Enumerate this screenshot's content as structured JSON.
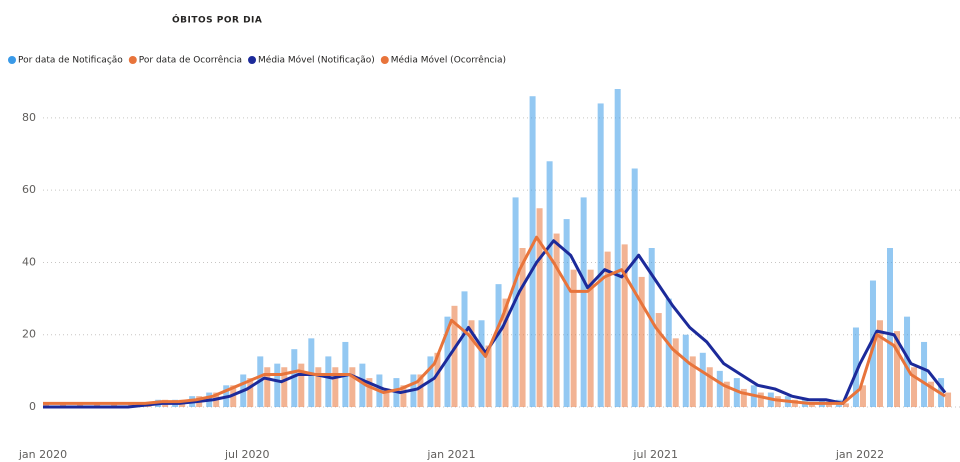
{
  "chart_data": {
    "type": "bar_line",
    "title": "ÓBITOS POR DIA",
    "categories": [
      "jan 2020",
      null,
      null,
      null,
      null,
      null,
      null,
      null,
      null,
      null,
      null,
      null,
      "jul 2020",
      null,
      null,
      null,
      null,
      null,
      null,
      null,
      null,
      null,
      null,
      null,
      "jan 2021",
      null,
      null,
      null,
      null,
      null,
      null,
      null,
      null,
      null,
      null,
      null,
      "jul 2021",
      null,
      null,
      null,
      null,
      null,
      null,
      null,
      null,
      null,
      null,
      null,
      "jan 2022",
      null,
      null,
      null,
      null,
      null
    ],
    "series": [
      {
        "name": "Por data de Notificação",
        "color": "#3a9ae8",
        "kind": "bar",
        "values": [
          0,
          0,
          0,
          0,
          0,
          0,
          1,
          2,
          2,
          3,
          4,
          6,
          9,
          14,
          12,
          16,
          19,
          14,
          18,
          12,
          9,
          8,
          9,
          14,
          25,
          32,
          24,
          34,
          58,
          86,
          68,
          52,
          58,
          84,
          88,
          66,
          44,
          30,
          20,
          15,
          10,
          8,
          6,
          4,
          3,
          2,
          2,
          2,
          22,
          35,
          44,
          25,
          18,
          8
        ]
      },
      {
        "name": "Por data de Ocorrência",
        "color": "#e8743b",
        "kind": "bar",
        "values": [
          1,
          1,
          1,
          1,
          1,
          1,
          1,
          2,
          2,
          3,
          4,
          6,
          8,
          11,
          11,
          12,
          11,
          11,
          11,
          8,
          5,
          6,
          9,
          15,
          28,
          24,
          17,
          30,
          44,
          55,
          48,
          38,
          38,
          43,
          45,
          36,
          26,
          19,
          14,
          11,
          7,
          5,
          4,
          3,
          2,
          1,
          1,
          1,
          6,
          24,
          21,
          11,
          7,
          4
        ]
      },
      {
        "name": "Média Móvel (Notificação)",
        "color": "#1c2a9a",
        "kind": "line",
        "values": [
          0,
          0,
          0,
          0,
          0,
          0,
          0.5,
          1,
          1,
          1.5,
          2,
          3,
          5,
          8,
          7,
          9,
          9,
          8,
          9,
          7,
          5,
          4,
          5,
          8,
          15,
          22,
          15,
          22,
          32,
          40,
          46,
          42,
          33,
          38,
          36,
          42,
          35,
          28,
          22,
          18,
          12,
          9,
          6,
          5,
          3,
          2,
          2,
          1,
          12,
          21,
          20,
          12,
          10,
          4
        ]
      },
      {
        "name": "Média Móvel (Ocorrência)",
        "color": "#e8743b",
        "kind": "line",
        "values": [
          1,
          1,
          1,
          1,
          1,
          1,
          1,
          1.5,
          1.5,
          2,
          3,
          5,
          7,
          9,
          9,
          10,
          9,
          9,
          9,
          6,
          4,
          5,
          7,
          12,
          24,
          20,
          14,
          25,
          38,
          47,
          40,
          32,
          32,
          36,
          38,
          30,
          22,
          16,
          12,
          9,
          6,
          4,
          3,
          2,
          1.5,
          1,
          1,
          1,
          5,
          20,
          17,
          9,
          6,
          3
        ]
      }
    ],
    "ylim": [
      0,
      88
    ],
    "yticks": [
      0,
      20,
      40,
      60,
      80
    ],
    "grid": true
  }
}
